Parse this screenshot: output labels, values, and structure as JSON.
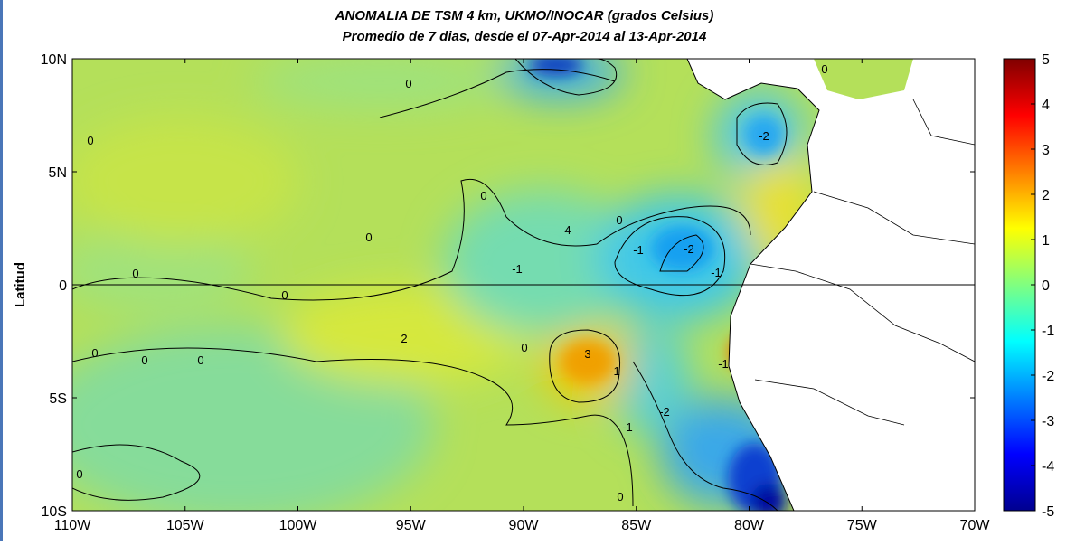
{
  "title": "ANOMALIA DE TSM 4 km, UKMO/INOCAR (grados Celsius)",
  "subtitle": "Promedio de 7 dias, desde el 07-Apr-2014 al 13-Apr-2014",
  "y_axis_label": "Latitud",
  "lon_range": [
    -110,
    -70
  ],
  "lat_range": [
    -10,
    10
  ],
  "lon_ticks": [
    {
      "value": -110,
      "label": "110W"
    },
    {
      "value": -105,
      "label": "105W"
    },
    {
      "value": -100,
      "label": "100W"
    },
    {
      "value": -95,
      "label": "95W"
    },
    {
      "value": -90,
      "label": "90W"
    },
    {
      "value": -85,
      "label": "85W"
    },
    {
      "value": -80,
      "label": "80W"
    },
    {
      "value": -75,
      "label": "75W"
    },
    {
      "value": -70,
      "label": "70W"
    }
  ],
  "lat_ticks": [
    {
      "value": 10,
      "label": "10N"
    },
    {
      "value": 5,
      "label": "5N"
    },
    {
      "value": 0,
      "label": "0"
    },
    {
      "value": -5,
      "label": "5S"
    },
    {
      "value": -10,
      "label": "10S"
    }
  ],
  "colorbar": {
    "lim": [
      -5,
      5
    ],
    "ticks": [
      5,
      4,
      3,
      2,
      1,
      0,
      -1,
      -2,
      -3,
      -4,
      -5
    ]
  },
  "contour_labels": [
    "0",
    "0",
    "0",
    "0",
    "0",
    "0",
    "0",
    "0",
    "0",
    "0",
    "0",
    "0",
    "0",
    "0",
    "-1",
    "-1",
    "-1",
    "-1",
    "-1",
    "-1",
    "-2",
    "-2",
    "-2",
    "2",
    "3",
    "4"
  ]
}
